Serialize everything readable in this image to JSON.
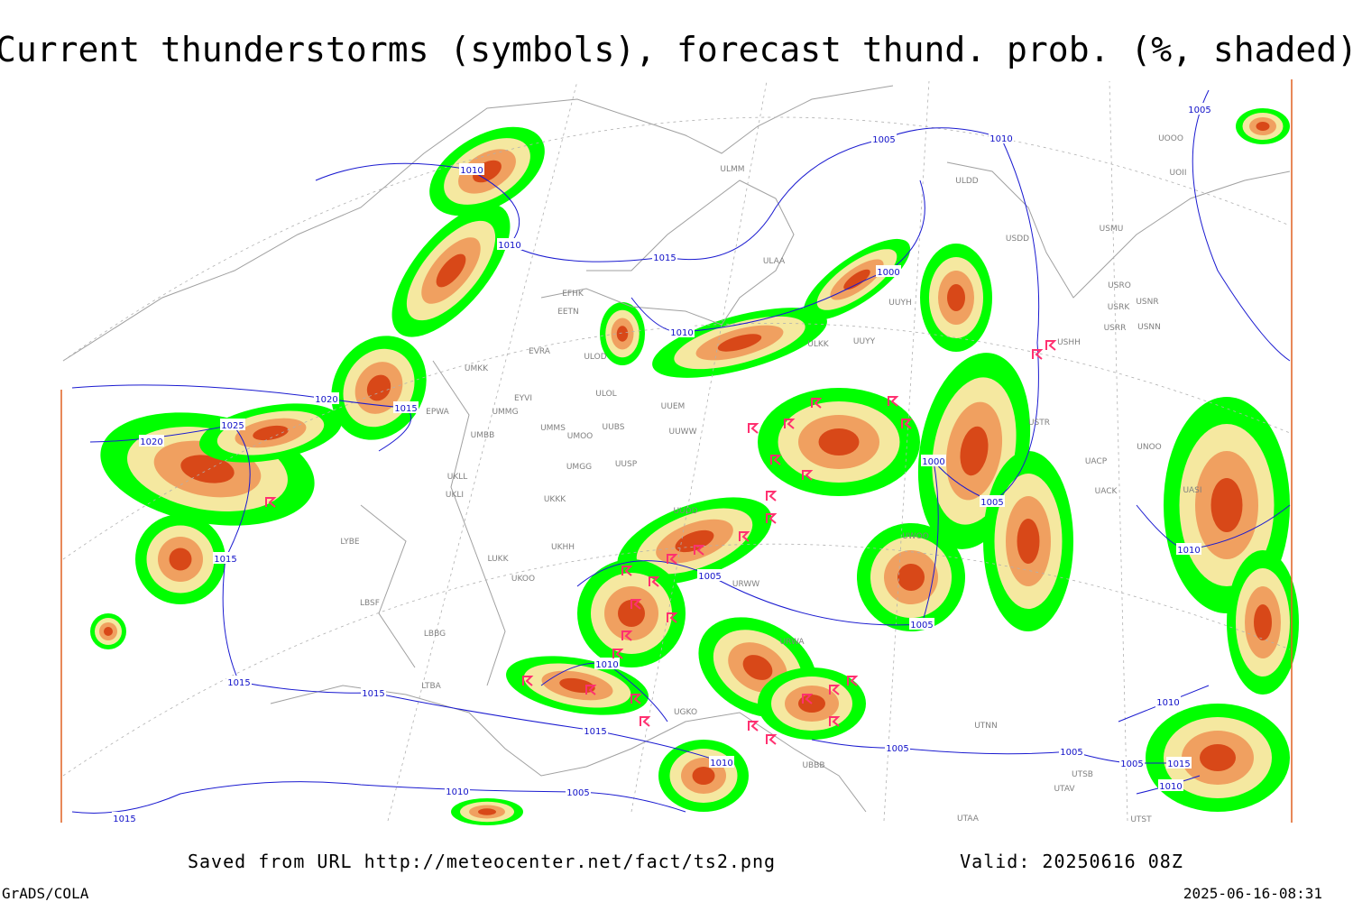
{
  "header": {
    "title": "Current thunderstorms (symbols), forecast thund. prob. (%, shaded)"
  },
  "footer": {
    "saved": "Saved from URL http://meteocenter.net/fact/ts2.png",
    "valid": "Valid: 20250616 08Z",
    "software": "GrADS/COLA",
    "timestamp": "2025-06-16-08:31"
  },
  "isobar_labels": [
    "1010",
    "1010",
    "1015",
    "1005",
    "1010",
    "1005",
    "1000",
    "1010",
    "1020",
    "1015",
    "1025",
    "1020",
    "1015",
    "1000",
    "1005",
    "1010",
    "1005",
    "1005",
    "1010",
    "1015",
    "1015",
    "1015",
    "1005",
    "1010",
    "1005",
    "1005",
    "1015",
    "1010",
    "1010",
    "1010",
    "1005",
    "1015"
  ],
  "station_labels": [
    "ULMM",
    "ULDD",
    "USDD",
    "USMU",
    "ULAA",
    "EFHK",
    "EETN",
    "USRO",
    "USRK",
    "USNR",
    "USRR",
    "USNN",
    "UUYH",
    "USHH",
    "UUYY",
    "ULKK",
    "ULOD",
    "EVRA",
    "UMKK",
    "ULOL",
    "EYVI",
    "UUEM",
    "UMMG",
    "EPWA",
    "USTR",
    "UUWW",
    "UMMS",
    "UUBS",
    "UMOO",
    "UMBB",
    "UNOO",
    "UACP",
    "UMGG",
    "UUSP",
    "UKLL",
    "UKLI",
    "UACK",
    "UKKK",
    "UUDD",
    "LYBE",
    "UWOO",
    "UKHH",
    "LUKK",
    "UKOO",
    "URWW",
    "LBSF",
    "LBBG",
    "URWA",
    "LTBA",
    "UGKO",
    "UTNN",
    "UBBB",
    "UTSB",
    "UTAV",
    "UTAA",
    "UTST",
    "UOOO",
    "UOII",
    "UASI"
  ]
}
